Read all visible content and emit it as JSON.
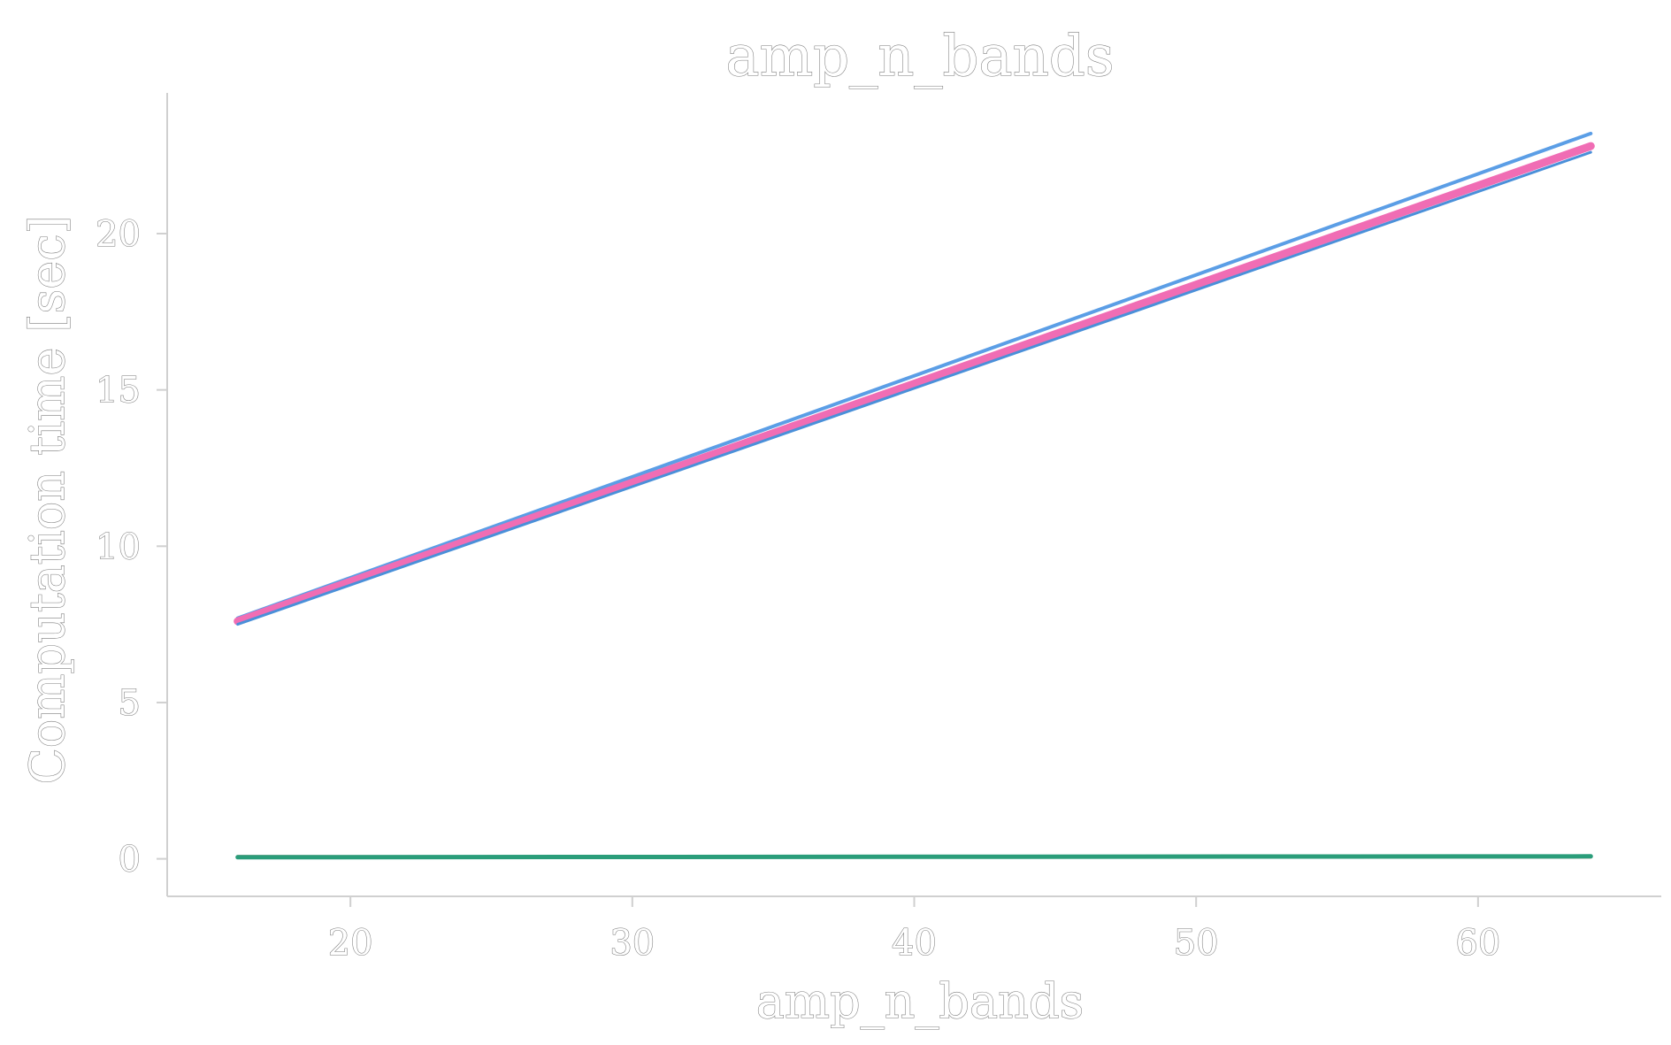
{
  "chart_data": {
    "type": "line",
    "title": "amp_n_bands",
    "xlabel": "amp_n_bands",
    "ylabel": "Computation time [sec]",
    "xlim": [
      13.5,
      66.5
    ],
    "ylim": [
      -1.2,
      24.5
    ],
    "x_ticks": [
      20,
      30,
      40,
      50,
      60
    ],
    "y_ticks": [
      0,
      5,
      10,
      15,
      20
    ],
    "x_tick_labels": [
      "20",
      "30",
      "40",
      "50",
      "60"
    ],
    "y_tick_labels": [
      "0",
      "5",
      "10",
      "15",
      "20"
    ],
    "grid": false,
    "legend": "none",
    "series": [
      {
        "x": [
          16,
          64
        ],
        "values": [
          7.7,
          23.2
        ],
        "color": "#5b9ee6",
        "width": 4
      },
      {
        "x": [
          16,
          64
        ],
        "values": [
          7.6,
          22.8
        ],
        "color": "#f06db4",
        "width": 9
      },
      {
        "x": [
          16,
          64
        ],
        "values": [
          7.5,
          22.6
        ],
        "color": "#4a90d9",
        "width": 3
      },
      {
        "x": [
          16,
          64
        ],
        "values": [
          0.08,
          0.05
        ],
        "color": "#e06666",
        "width": 3
      },
      {
        "x": [
          16,
          64
        ],
        "values": [
          0.03,
          0.07
        ],
        "color": "#e0a020",
        "width": 3
      },
      {
        "x": [
          16,
          64
        ],
        "values": [
          0.05,
          0.08
        ],
        "color": "#2a9d7a",
        "width": 5
      }
    ]
  }
}
